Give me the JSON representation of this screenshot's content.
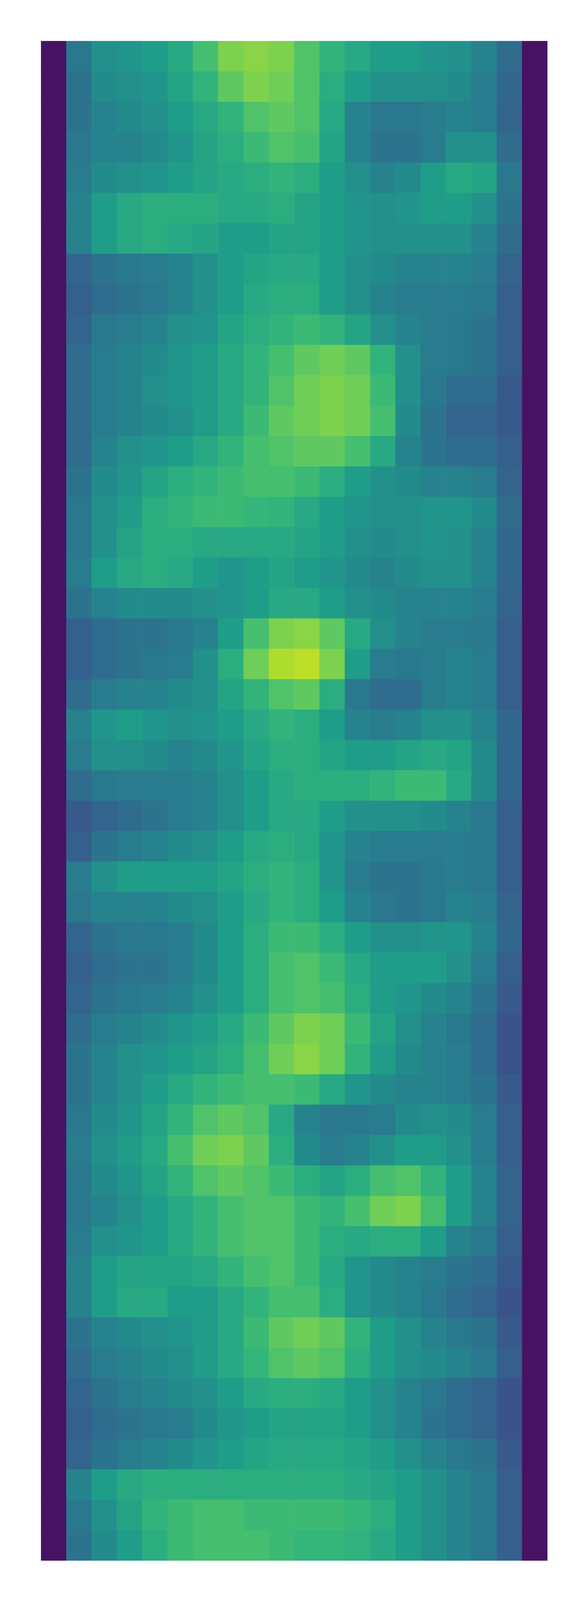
{
  "chart_data": {
    "type": "heatmap",
    "tick_labels": false,
    "zlim": [
      0,
      1
    ],
    "cells": [
      [
        0.05,
        0.4,
        0.5,
        0.52,
        0.55,
        0.6,
        0.7,
        0.8,
        0.82,
        0.8,
        0.72,
        0.65,
        0.6,
        0.55,
        0.55,
        0.52,
        0.5,
        0.45,
        0.35,
        0.05
      ],
      [
        0.05,
        0.38,
        0.48,
        0.5,
        0.52,
        0.58,
        0.65,
        0.75,
        0.8,
        0.78,
        0.72,
        0.62,
        0.55,
        0.5,
        0.5,
        0.5,
        0.48,
        0.42,
        0.33,
        0.05
      ],
      [
        0.05,
        0.38,
        0.45,
        0.48,
        0.5,
        0.55,
        0.6,
        0.65,
        0.72,
        0.75,
        0.72,
        0.6,
        0.45,
        0.4,
        0.4,
        0.42,
        0.45,
        0.42,
        0.32,
        0.05
      ],
      [
        0.05,
        0.4,
        0.45,
        0.45,
        0.48,
        0.52,
        0.58,
        0.62,
        0.68,
        0.72,
        0.7,
        0.58,
        0.45,
        0.38,
        0.38,
        0.42,
        0.5,
        0.5,
        0.35,
        0.05
      ],
      [
        0.05,
        0.42,
        0.48,
        0.5,
        0.52,
        0.55,
        0.58,
        0.6,
        0.62,
        0.65,
        0.62,
        0.55,
        0.5,
        0.45,
        0.48,
        0.55,
        0.6,
        0.58,
        0.4,
        0.05
      ],
      [
        0.05,
        0.45,
        0.55,
        0.6,
        0.62,
        0.62,
        0.62,
        0.6,
        0.6,
        0.62,
        0.58,
        0.55,
        0.52,
        0.5,
        0.52,
        0.55,
        0.55,
        0.5,
        0.38,
        0.05
      ],
      [
        0.05,
        0.45,
        0.55,
        0.6,
        0.62,
        0.6,
        0.58,
        0.55,
        0.55,
        0.58,
        0.58,
        0.55,
        0.52,
        0.5,
        0.5,
        0.5,
        0.5,
        0.45,
        0.35,
        0.05
      ],
      [
        0.05,
        0.32,
        0.38,
        0.4,
        0.42,
        0.45,
        0.5,
        0.55,
        0.58,
        0.6,
        0.6,
        0.55,
        0.5,
        0.48,
        0.45,
        0.45,
        0.45,
        0.42,
        0.32,
        0.05
      ],
      [
        0.05,
        0.3,
        0.35,
        0.38,
        0.4,
        0.45,
        0.5,
        0.55,
        0.6,
        0.62,
        0.62,
        0.55,
        0.5,
        0.45,
        0.42,
        0.42,
        0.42,
        0.4,
        0.3,
        0.05
      ],
      [
        0.05,
        0.32,
        0.4,
        0.42,
        0.45,
        0.5,
        0.52,
        0.58,
        0.62,
        0.65,
        0.68,
        0.65,
        0.58,
        0.5,
        0.45,
        0.42,
        0.4,
        0.38,
        0.3,
        0.05
      ],
      [
        0.05,
        0.35,
        0.42,
        0.45,
        0.48,
        0.52,
        0.55,
        0.6,
        0.65,
        0.7,
        0.75,
        0.78,
        0.75,
        0.65,
        0.5,
        0.42,
        0.4,
        0.38,
        0.3,
        0.05
      ],
      [
        0.05,
        0.35,
        0.42,
        0.45,
        0.5,
        0.52,
        0.55,
        0.6,
        0.65,
        0.72,
        0.78,
        0.8,
        0.78,
        0.68,
        0.5,
        0.4,
        0.35,
        0.35,
        0.28,
        0.05
      ],
      [
        0.05,
        0.35,
        0.42,
        0.45,
        0.48,
        0.5,
        0.55,
        0.6,
        0.68,
        0.75,
        0.78,
        0.8,
        0.78,
        0.7,
        0.48,
        0.38,
        0.32,
        0.32,
        0.28,
        0.05
      ],
      [
        0.05,
        0.35,
        0.45,
        0.5,
        0.52,
        0.55,
        0.6,
        0.65,
        0.7,
        0.72,
        0.75,
        0.75,
        0.7,
        0.6,
        0.45,
        0.38,
        0.35,
        0.35,
        0.3,
        0.05
      ],
      [
        0.05,
        0.38,
        0.48,
        0.52,
        0.58,
        0.62,
        0.65,
        0.68,
        0.7,
        0.7,
        0.68,
        0.62,
        0.55,
        0.5,
        0.48,
        0.45,
        0.45,
        0.42,
        0.32,
        0.05
      ],
      [
        0.05,
        0.4,
        0.5,
        0.55,
        0.62,
        0.65,
        0.68,
        0.68,
        0.66,
        0.65,
        0.6,
        0.55,
        0.52,
        0.5,
        0.5,
        0.52,
        0.52,
        0.48,
        0.35,
        0.05
      ],
      [
        0.05,
        0.4,
        0.5,
        0.58,
        0.62,
        0.62,
        0.6,
        0.6,
        0.6,
        0.6,
        0.58,
        0.55,
        0.5,
        0.48,
        0.5,
        0.52,
        0.5,
        0.45,
        0.33,
        0.05
      ],
      [
        0.05,
        0.42,
        0.55,
        0.6,
        0.62,
        0.6,
        0.55,
        0.52,
        0.55,
        0.58,
        0.55,
        0.52,
        0.48,
        0.45,
        0.48,
        0.5,
        0.5,
        0.45,
        0.33,
        0.05
      ],
      [
        0.05,
        0.38,
        0.45,
        0.48,
        0.48,
        0.48,
        0.5,
        0.52,
        0.55,
        0.6,
        0.6,
        0.55,
        0.5,
        0.48,
        0.45,
        0.45,
        0.45,
        0.42,
        0.32,
        0.05
      ],
      [
        0.05,
        0.3,
        0.35,
        0.38,
        0.38,
        0.4,
        0.45,
        0.55,
        0.7,
        0.8,
        0.82,
        0.75,
        0.6,
        0.5,
        0.45,
        0.42,
        0.42,
        0.4,
        0.3,
        0.05
      ],
      [
        0.05,
        0.3,
        0.35,
        0.38,
        0.4,
        0.42,
        0.5,
        0.62,
        0.78,
        0.88,
        0.9,
        0.8,
        0.55,
        0.42,
        0.4,
        0.42,
        0.45,
        0.42,
        0.3,
        0.05
      ],
      [
        0.05,
        0.35,
        0.42,
        0.45,
        0.45,
        0.48,
        0.5,
        0.58,
        0.65,
        0.72,
        0.75,
        0.62,
        0.4,
        0.35,
        0.35,
        0.42,
        0.45,
        0.42,
        0.3,
        0.05
      ],
      [
        0.05,
        0.45,
        0.52,
        0.55,
        0.52,
        0.5,
        0.52,
        0.55,
        0.6,
        0.65,
        0.62,
        0.55,
        0.45,
        0.42,
        0.45,
        0.5,
        0.5,
        0.45,
        0.33,
        0.05
      ],
      [
        0.05,
        0.42,
        0.5,
        0.5,
        0.48,
        0.45,
        0.48,
        0.52,
        0.58,
        0.62,
        0.62,
        0.58,
        0.55,
        0.55,
        0.58,
        0.6,
        0.58,
        0.48,
        0.33,
        0.05
      ],
      [
        0.05,
        0.35,
        0.4,
        0.42,
        0.42,
        0.42,
        0.45,
        0.5,
        0.55,
        0.6,
        0.62,
        0.62,
        0.62,
        0.65,
        0.68,
        0.68,
        0.6,
        0.48,
        0.33,
        0.05
      ],
      [
        0.05,
        0.28,
        0.32,
        0.35,
        0.38,
        0.42,
        0.45,
        0.5,
        0.55,
        0.6,
        0.6,
        0.55,
        0.5,
        0.5,
        0.5,
        0.48,
        0.45,
        0.4,
        0.3,
        0.05
      ],
      [
        0.05,
        0.3,
        0.38,
        0.42,
        0.45,
        0.48,
        0.5,
        0.55,
        0.6,
        0.62,
        0.6,
        0.52,
        0.45,
        0.42,
        0.42,
        0.42,
        0.42,
        0.4,
        0.3,
        0.05
      ],
      [
        0.05,
        0.42,
        0.5,
        0.55,
        0.55,
        0.55,
        0.55,
        0.58,
        0.62,
        0.65,
        0.62,
        0.52,
        0.42,
        0.38,
        0.38,
        0.4,
        0.42,
        0.4,
        0.3,
        0.05
      ],
      [
        0.05,
        0.4,
        0.45,
        0.45,
        0.45,
        0.48,
        0.5,
        0.55,
        0.6,
        0.65,
        0.62,
        0.55,
        0.45,
        0.4,
        0.38,
        0.4,
        0.45,
        0.42,
        0.32,
        0.05
      ],
      [
        0.05,
        0.32,
        0.38,
        0.4,
        0.4,
        0.42,
        0.48,
        0.55,
        0.62,
        0.68,
        0.68,
        0.62,
        0.55,
        0.5,
        0.5,
        0.52,
        0.52,
        0.45,
        0.33,
        0.05
      ],
      [
        0.05,
        0.3,
        0.35,
        0.38,
        0.38,
        0.42,
        0.48,
        0.55,
        0.62,
        0.7,
        0.72,
        0.68,
        0.6,
        0.55,
        0.55,
        0.55,
        0.5,
        0.42,
        0.3,
        0.05
      ],
      [
        0.05,
        0.32,
        0.38,
        0.4,
        0.42,
        0.45,
        0.5,
        0.55,
        0.62,
        0.7,
        0.72,
        0.7,
        0.62,
        0.55,
        0.52,
        0.48,
        0.45,
        0.38,
        0.28,
        0.05
      ],
      [
        0.05,
        0.35,
        0.42,
        0.45,
        0.48,
        0.52,
        0.55,
        0.6,
        0.68,
        0.75,
        0.8,
        0.78,
        0.68,
        0.58,
        0.5,
        0.45,
        0.4,
        0.35,
        0.26,
        0.05
      ],
      [
        0.05,
        0.38,
        0.45,
        0.5,
        0.52,
        0.55,
        0.58,
        0.62,
        0.7,
        0.78,
        0.82,
        0.78,
        0.65,
        0.55,
        0.48,
        0.45,
        0.42,
        0.35,
        0.25,
        0.05
      ],
      [
        0.05,
        0.38,
        0.45,
        0.5,
        0.55,
        0.6,
        0.65,
        0.68,
        0.7,
        0.7,
        0.68,
        0.6,
        0.52,
        0.48,
        0.45,
        0.45,
        0.42,
        0.38,
        0.28,
        0.05
      ],
      [
        0.05,
        0.4,
        0.48,
        0.52,
        0.58,
        0.65,
        0.72,
        0.75,
        0.72,
        0.6,
        0.45,
        0.4,
        0.4,
        0.42,
        0.48,
        0.5,
        0.48,
        0.42,
        0.3,
        0.05
      ],
      [
        0.05,
        0.42,
        0.5,
        0.55,
        0.6,
        0.7,
        0.78,
        0.8,
        0.75,
        0.62,
        0.48,
        0.42,
        0.45,
        0.5,
        0.55,
        0.55,
        0.5,
        0.42,
        0.3,
        0.05
      ],
      [
        0.05,
        0.4,
        0.48,
        0.52,
        0.58,
        0.65,
        0.72,
        0.75,
        0.72,
        0.68,
        0.62,
        0.58,
        0.62,
        0.7,
        0.72,
        0.65,
        0.55,
        0.45,
        0.32,
        0.05
      ],
      [
        0.05,
        0.4,
        0.45,
        0.5,
        0.55,
        0.6,
        0.65,
        0.7,
        0.72,
        0.72,
        0.68,
        0.65,
        0.7,
        0.78,
        0.8,
        0.7,
        0.55,
        0.45,
        0.32,
        0.05
      ],
      [
        0.05,
        0.42,
        0.5,
        0.52,
        0.55,
        0.6,
        0.65,
        0.7,
        0.72,
        0.72,
        0.68,
        0.62,
        0.6,
        0.62,
        0.62,
        0.55,
        0.45,
        0.4,
        0.3,
        0.05
      ],
      [
        0.05,
        0.45,
        0.55,
        0.58,
        0.58,
        0.58,
        0.6,
        0.65,
        0.7,
        0.72,
        0.68,
        0.6,
        0.52,
        0.48,
        0.45,
        0.42,
        0.38,
        0.35,
        0.28,
        0.05
      ],
      [
        0.05,
        0.45,
        0.55,
        0.6,
        0.6,
        0.55,
        0.55,
        0.6,
        0.65,
        0.7,
        0.7,
        0.62,
        0.52,
        0.48,
        0.45,
        0.4,
        0.35,
        0.32,
        0.26,
        0.05
      ],
      [
        0.05,
        0.38,
        0.45,
        0.48,
        0.5,
        0.52,
        0.55,
        0.6,
        0.68,
        0.75,
        0.78,
        0.75,
        0.65,
        0.55,
        0.5,
        0.45,
        0.4,
        0.38,
        0.28,
        0.05
      ],
      [
        0.05,
        0.35,
        0.42,
        0.45,
        0.48,
        0.5,
        0.55,
        0.6,
        0.66,
        0.72,
        0.75,
        0.72,
        0.62,
        0.55,
        0.5,
        0.48,
        0.45,
        0.4,
        0.3,
        0.05
      ],
      [
        0.05,
        0.32,
        0.38,
        0.42,
        0.45,
        0.48,
        0.5,
        0.55,
        0.6,
        0.62,
        0.62,
        0.6,
        0.55,
        0.5,
        0.45,
        0.4,
        0.35,
        0.32,
        0.26,
        0.05
      ],
      [
        0.05,
        0.3,
        0.35,
        0.38,
        0.4,
        0.42,
        0.48,
        0.52,
        0.55,
        0.58,
        0.58,
        0.58,
        0.55,
        0.5,
        0.45,
        0.38,
        0.35,
        0.32,
        0.26,
        0.05
      ],
      [
        0.05,
        0.32,
        0.38,
        0.42,
        0.45,
        0.48,
        0.52,
        0.55,
        0.58,
        0.6,
        0.6,
        0.6,
        0.58,
        0.55,
        0.5,
        0.45,
        0.4,
        0.38,
        0.28,
        0.05
      ],
      [
        0.05,
        0.45,
        0.55,
        0.6,
        0.62,
        0.62,
        0.62,
        0.62,
        0.62,
        0.62,
        0.62,
        0.62,
        0.6,
        0.58,
        0.55,
        0.5,
        0.45,
        0.4,
        0.3,
        0.05
      ],
      [
        0.05,
        0.4,
        0.5,
        0.58,
        0.65,
        0.68,
        0.7,
        0.7,
        0.68,
        0.68,
        0.68,
        0.68,
        0.66,
        0.62,
        0.55,
        0.5,
        0.45,
        0.4,
        0.3,
        0.05
      ],
      [
        0.05,
        0.38,
        0.48,
        0.55,
        0.62,
        0.68,
        0.7,
        0.7,
        0.7,
        0.68,
        0.66,
        0.66,
        0.64,
        0.6,
        0.55,
        0.5,
        0.45,
        0.4,
        0.3,
        0.05
      ]
    ]
  }
}
